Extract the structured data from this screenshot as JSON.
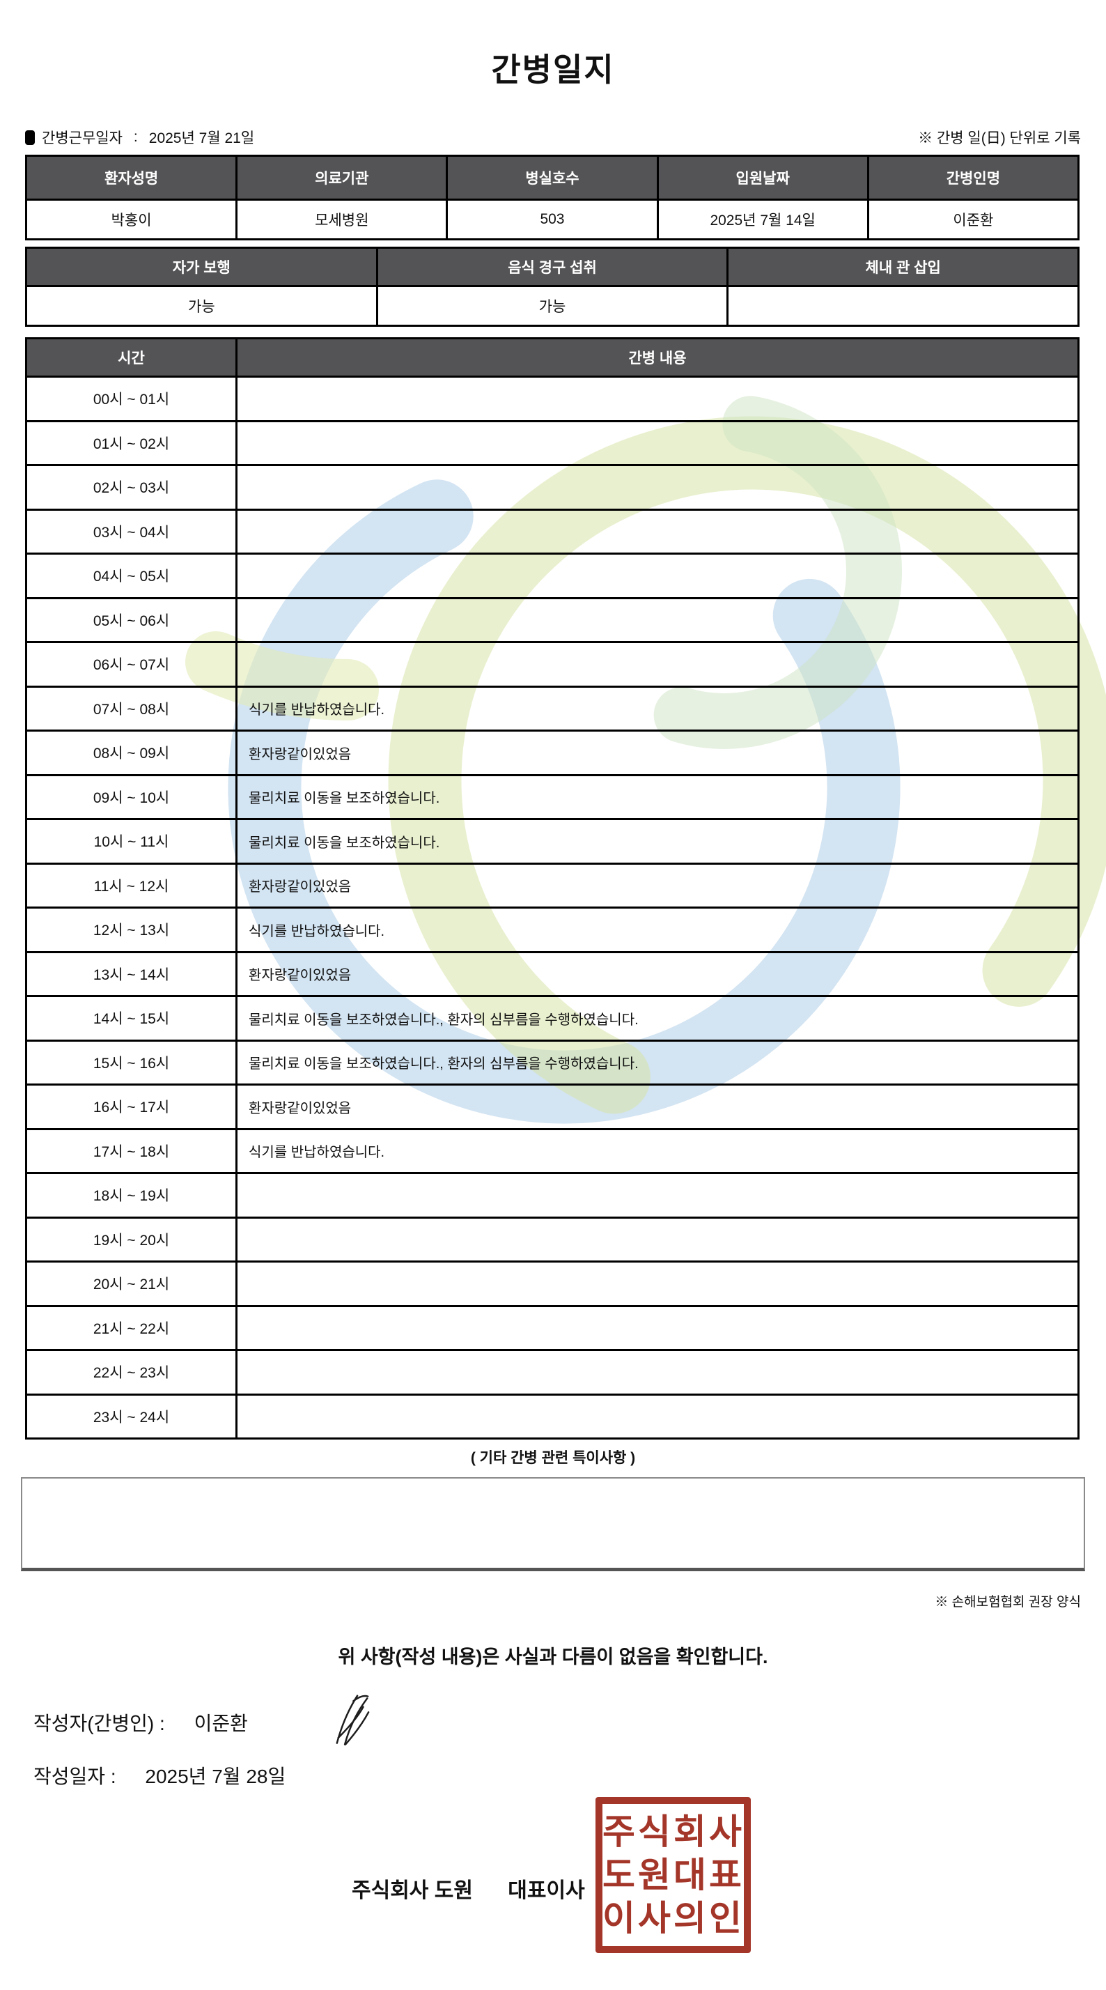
{
  "title": "간병일지",
  "meta": {
    "work_date_label": "간병근무일자",
    "work_date_colon": ":",
    "work_date": "2025년 7월 21일",
    "unit_note": "※ 간병 일(日) 단위로 기록"
  },
  "patient_table": {
    "headers": [
      "환자성명",
      "의료기관",
      "병실호수",
      "입원날짜",
      "간병인명"
    ],
    "values": [
      "박홍이",
      "모세병원",
      "503",
      "2025년 7월 14일",
      "이준환"
    ]
  },
  "status_table": {
    "headers": [
      "자가 보행",
      "음식 경구 섭취",
      "체내 관 삽입"
    ],
    "values": [
      "가능",
      "가능",
      ""
    ]
  },
  "care_table": {
    "time_header": "시간",
    "content_header": "간병 내용",
    "rows": [
      {
        "time": "00시 ~ 01시",
        "content": ""
      },
      {
        "time": "01시 ~ 02시",
        "content": ""
      },
      {
        "time": "02시 ~ 03시",
        "content": ""
      },
      {
        "time": "03시 ~ 04시",
        "content": ""
      },
      {
        "time": "04시 ~ 05시",
        "content": ""
      },
      {
        "time": "05시 ~ 06시",
        "content": ""
      },
      {
        "time": "06시 ~ 07시",
        "content": ""
      },
      {
        "time": "07시 ~ 08시",
        "content": "식기를 반납하였습니다."
      },
      {
        "time": "08시 ~ 09시",
        "content": "환자랑같이있었음"
      },
      {
        "time": "09시 ~ 10시",
        "content": "물리치료 이동을 보조하였습니다."
      },
      {
        "time": "10시 ~ 11시",
        "content": "물리치료 이동을 보조하였습니다."
      },
      {
        "time": "11시 ~ 12시",
        "content": "환자랑같이있었음"
      },
      {
        "time": "12시 ~ 13시",
        "content": "식기를 반납하였습니다."
      },
      {
        "time": "13시 ~ 14시",
        "content": "환자랑같이있었음"
      },
      {
        "time": "14시 ~ 15시",
        "content": "물리치료 이동을 보조하였습니다., 환자의 심부름을 수행하였습니다."
      },
      {
        "time": "15시 ~ 16시",
        "content": "물리치료 이동을 보조하였습니다., 환자의 심부름을 수행하였습니다."
      },
      {
        "time": "16시 ~ 17시",
        "content": "환자랑같이있었음"
      },
      {
        "time": "17시 ~ 18시",
        "content": "식기를 반납하였습니다."
      },
      {
        "time": "18시 ~ 19시",
        "content": ""
      },
      {
        "time": "19시 ~ 20시",
        "content": ""
      },
      {
        "time": "20시 ~ 21시",
        "content": ""
      },
      {
        "time": "21시 ~ 22시",
        "content": ""
      },
      {
        "time": "22시 ~ 23시",
        "content": ""
      },
      {
        "time": "23시 ~ 24시",
        "content": ""
      }
    ]
  },
  "notes": {
    "label": "( 기타 간병 관련 특이사항 )",
    "value": "",
    "form_note": "※ 손해보험협회 권장 양식"
  },
  "confirmation": {
    "statement": "위 사항(작성 내용)은 사실과 다름이 없음을 확인합니다.",
    "author_label": "작성자(간병인) :",
    "author_name": "이준환",
    "date_label": "작성일자 :",
    "date_value": "2025년 7월 28일",
    "company_name": "주식회사 도원",
    "ceo_label": "대표이사",
    "seal_lines": [
      "주식회사",
      "도원대표",
      "이사의인"
    ]
  },
  "colors": {
    "header_bg": "#545456",
    "seal_red": "#A43529",
    "watermark_blue": "#AECDE8",
    "watermark_green": "#D7E4A8",
    "watermark_light_green": "#CDE3C4"
  }
}
